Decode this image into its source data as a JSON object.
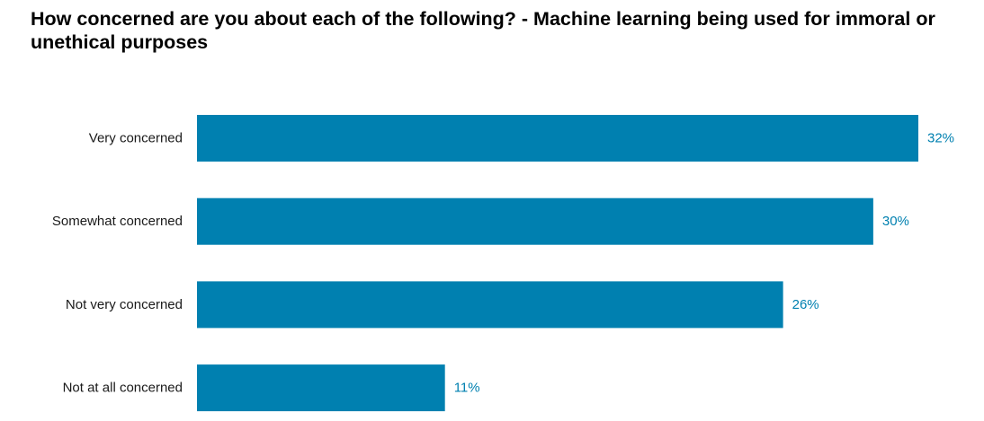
{
  "chart_data": {
    "type": "bar",
    "orientation": "horizontal",
    "title": "How concerned are you about each of the following? - Machine learning being used for immoral or unethical purposes",
    "categories": [
      "Very concerned",
      "Somewhat concerned",
      "Not very concerned",
      "Not at all concerned"
    ],
    "values": [
      32,
      30,
      26,
      11
    ],
    "value_labels": [
      "32%",
      "30%",
      "26%",
      "11%"
    ],
    "xlim": [
      0,
      100
    ],
    "grid": false,
    "legend": "none",
    "bar_color": "#0080B0",
    "label_color": "#0080B0"
  }
}
